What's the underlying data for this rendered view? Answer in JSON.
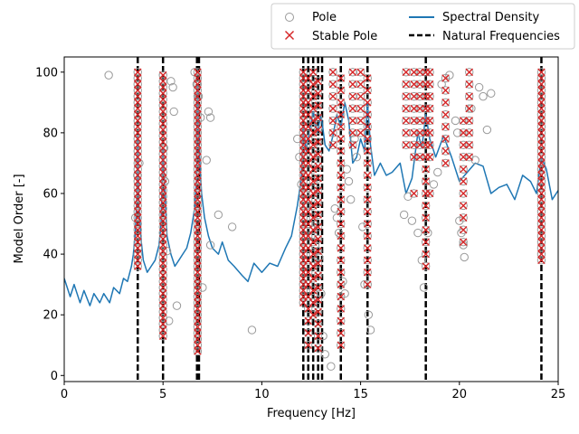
{
  "chart_data": {
    "type": "scatter",
    "title": "",
    "xlabel": "Frequency [Hz]",
    "ylabel": "Model Order [-]",
    "xlim": [
      0,
      25
    ],
    "ylim": [
      -2,
      105
    ],
    "xticks": [
      0,
      5,
      10,
      15,
      20,
      25
    ],
    "yticks": [
      0,
      20,
      40,
      60,
      80,
      100
    ],
    "xtick_labels": [
      "0",
      "5",
      "10",
      "15",
      "20",
      "25"
    ],
    "ytick_labels": [
      "0",
      "20",
      "40",
      "60",
      "80",
      "100"
    ],
    "grid": false,
    "legend": {
      "placement": "top-right, above plot",
      "entries": [
        "Pole",
        "Stable Pole",
        "Spectral Density",
        "Natural Frequencies"
      ]
    },
    "colors": {
      "pole": "#999999",
      "stable_pole": "#d62728",
      "spectral_density": "#1f77b4",
      "natural_frequencies": "#000000"
    },
    "natural_frequencies": [
      3.72,
      5.0,
      6.72,
      6.82,
      12.1,
      12.35,
      12.6,
      12.85,
      13.05,
      14.0,
      15.35,
      18.3,
      24.15
    ],
    "stable_columns": [
      {
        "x": 3.72,
        "orders": [
          36,
          38,
          40,
          42,
          44,
          46,
          48,
          50,
          52,
          54,
          56,
          58,
          60,
          62,
          64,
          66,
          68,
          70,
          72,
          74,
          76,
          78,
          80,
          82,
          84,
          86,
          88,
          90,
          92,
          94,
          96,
          98,
          100
        ]
      },
      {
        "x": 5.0,
        "orders": [
          13,
          15,
          17,
          19,
          21,
          23,
          25,
          27,
          29,
          31,
          33,
          35,
          37,
          39,
          41,
          43,
          45,
          47,
          49,
          51,
          53,
          55,
          57,
          59,
          61,
          63,
          65,
          67,
          69,
          71,
          73,
          75,
          77,
          79,
          81,
          83,
          85,
          87,
          89,
          91,
          93,
          95,
          97,
          99
        ]
      },
      {
        "x": 6.75,
        "orders": [
          8,
          10,
          12,
          14,
          16,
          18,
          20,
          22,
          24,
          26,
          28,
          30,
          32,
          34,
          36,
          38,
          40,
          42,
          44,
          46,
          48,
          50,
          52,
          54,
          56,
          58,
          60,
          62,
          64,
          66,
          68,
          70,
          72,
          74,
          76,
          78,
          80,
          82,
          84,
          86,
          88,
          90,
          92,
          94,
          96,
          98,
          100
        ]
      },
      {
        "x": 12.1,
        "orders": [
          24,
          26,
          28,
          30,
          32,
          34,
          36,
          38,
          40,
          42,
          44,
          46,
          48,
          50,
          52,
          54,
          56,
          58,
          60,
          62,
          64,
          66,
          68,
          70,
          72,
          74,
          76,
          78,
          80,
          82,
          84,
          86,
          88,
          90,
          92,
          94,
          96,
          98,
          100
        ]
      },
      {
        "x": 12.35,
        "orders": [
          10,
          14,
          18,
          22,
          26,
          30,
          34,
          38,
          42,
          46,
          50,
          54,
          58,
          62,
          66,
          70,
          74,
          78,
          82,
          86,
          90,
          94,
          98
        ]
      },
      {
        "x": 12.6,
        "orders": [
          20,
          24,
          28,
          32,
          36,
          40,
          44,
          48,
          52,
          56,
          60,
          64,
          68,
          72,
          76,
          80,
          84,
          88,
          92,
          96,
          100
        ]
      },
      {
        "x": 12.85,
        "orders": [
          9,
          13,
          17,
          21,
          25,
          29,
          33,
          37,
          41,
          45,
          49,
          53,
          57,
          61,
          65,
          69,
          73,
          77,
          81,
          85,
          89,
          93,
          97
        ]
      },
      {
        "x": 14.0,
        "orders": [
          10,
          14,
          18,
          22,
          26,
          30,
          34,
          38,
          42,
          46,
          50,
          54,
          58,
          62,
          66,
          70,
          74,
          78,
          82,
          86,
          90,
          94,
          98
        ]
      },
      {
        "x": 15.35,
        "orders": [
          30,
          34,
          38,
          42,
          46,
          50,
          54,
          58,
          62,
          66,
          70,
          74,
          78,
          82,
          86,
          90,
          94,
          98
        ]
      },
      {
        "x": 18.3,
        "orders": [
          36,
          40,
          44,
          48,
          52,
          56,
          60,
          64,
          68,
          72,
          76,
          80,
          84,
          88,
          92,
          96,
          100
        ]
      },
      {
        "x": 24.15,
        "orders": [
          38,
          40,
          42,
          44,
          46,
          48,
          50,
          52,
          54,
          56,
          58,
          60,
          62,
          64,
          66,
          68,
          70,
          72,
          74,
          76,
          78,
          80,
          82,
          84,
          86,
          88,
          90,
          92,
          94,
          96,
          98,
          100
        ]
      }
    ],
    "stable_extra": [
      {
        "x": 13.6,
        "orders": [
          76,
          80,
          84,
          88,
          92,
          96,
          100
        ]
      },
      {
        "x": 14.6,
        "orders": [
          76,
          80,
          84,
          88,
          92,
          96,
          100
        ]
      },
      {
        "x": 15.0,
        "orders": [
          80,
          84,
          88,
          92,
          96,
          100
        ]
      },
      {
        "x": 17.3,
        "orders": [
          76,
          80,
          84,
          88,
          92,
          96,
          100
        ]
      },
      {
        "x": 17.7,
        "orders": [
          60,
          72,
          76,
          80,
          84,
          88,
          92,
          96,
          100
        ]
      },
      {
        "x": 18.0,
        "orders": [
          72,
          76,
          80,
          84,
          88,
          92,
          96,
          100
        ]
      },
      {
        "x": 18.5,
        "orders": [
          60,
          72,
          76,
          80,
          84,
          88,
          92,
          96,
          100
        ]
      },
      {
        "x": 19.3,
        "orders": [
          70,
          74,
          78,
          82,
          86,
          90,
          94,
          98
        ]
      },
      {
        "x": 20.2,
        "orders": [
          44,
          48,
          52,
          56,
          60,
          64,
          68,
          72,
          76,
          80,
          84
        ]
      },
      {
        "x": 20.5,
        "orders": [
          72,
          76,
          80,
          84,
          88,
          92,
          96,
          100
        ]
      }
    ],
    "unstable_poles": [
      [
        2.25,
        99
      ],
      [
        3.6,
        52
      ],
      [
        3.7,
        66
      ],
      [
        3.8,
        70
      ],
      [
        5.05,
        75
      ],
      [
        5.1,
        64
      ],
      [
        5.2,
        41
      ],
      [
        5.3,
        18
      ],
      [
        5.4,
        97
      ],
      [
        5.5,
        95
      ],
      [
        5.55,
        87
      ],
      [
        5.7,
        23
      ],
      [
        6.6,
        100
      ],
      [
        6.7,
        96
      ],
      [
        6.8,
        92
      ],
      [
        6.9,
        85
      ],
      [
        7.0,
        29
      ],
      [
        7.2,
        71
      ],
      [
        7.3,
        87
      ],
      [
        7.4,
        85
      ],
      [
        7.8,
        53
      ],
      [
        8.5,
        49
      ],
      [
        7.4,
        43
      ],
      [
        9.5,
        15
      ],
      [
        11.8,
        78
      ],
      [
        11.9,
        72
      ],
      [
        12.0,
        63
      ],
      [
        12.2,
        60
      ],
      [
        12.3,
        56
      ],
      [
        12.4,
        50
      ],
      [
        12.5,
        46
      ],
      [
        12.7,
        43
      ],
      [
        12.9,
        39
      ],
      [
        13.0,
        27
      ],
      [
        13.1,
        13
      ],
      [
        13.2,
        7
      ],
      [
        13.5,
        3
      ],
      [
        13.7,
        55
      ],
      [
        13.8,
        52
      ],
      [
        13.9,
        47
      ],
      [
        14.1,
        31
      ],
      [
        14.2,
        27
      ],
      [
        14.3,
        68
      ],
      [
        14.4,
        64
      ],
      [
        14.5,
        58
      ],
      [
        14.7,
        78
      ],
      [
        14.8,
        72
      ],
      [
        15.1,
        49
      ],
      [
        15.2,
        30
      ],
      [
        15.4,
        20
      ],
      [
        15.5,
        15
      ],
      [
        17.2,
        53
      ],
      [
        17.4,
        59
      ],
      [
        17.6,
        51
      ],
      [
        17.9,
        47
      ],
      [
        18.1,
        38
      ],
      [
        18.2,
        29
      ],
      [
        18.4,
        47
      ],
      [
        18.7,
        63
      ],
      [
        18.9,
        67
      ],
      [
        19.1,
        96
      ],
      [
        19.5,
        99
      ],
      [
        19.8,
        84
      ],
      [
        19.9,
        80
      ],
      [
        20.0,
        51
      ],
      [
        20.1,
        47
      ],
      [
        20.2,
        43
      ],
      [
        20.25,
        39
      ],
      [
        20.6,
        88
      ],
      [
        20.8,
        71
      ],
      [
        21.0,
        95
      ],
      [
        21.2,
        92
      ],
      [
        21.4,
        81
      ],
      [
        21.6,
        93
      ]
    ],
    "spectral_density": {
      "x": [
        0.0,
        0.3,
        0.5,
        0.8,
        1.0,
        1.3,
        1.5,
        1.8,
        2.0,
        2.3,
        2.5,
        2.8,
        3.0,
        3.2,
        3.4,
        3.5,
        3.6,
        3.68,
        3.72,
        3.78,
        3.9,
        4.0,
        4.2,
        4.4,
        4.6,
        4.8,
        4.9,
        5.0,
        5.1,
        5.2,
        5.4,
        5.6,
        5.8,
        6.0,
        6.2,
        6.4,
        6.6,
        6.7,
        6.75,
        6.85,
        6.95,
        7.1,
        7.3,
        7.5,
        7.8,
        8.0,
        8.3,
        8.6,
        9.0,
        9.3,
        9.6,
        10.0,
        10.4,
        10.8,
        11.2,
        11.5,
        11.8,
        12.0,
        12.1,
        12.25,
        12.4,
        12.6,
        12.8,
        13.0,
        13.2,
        13.4,
        13.6,
        13.8,
        14.0,
        14.2,
        14.4,
        14.6,
        14.8,
        15.0,
        15.2,
        15.35,
        15.5,
        15.7,
        16.0,
        16.3,
        16.6,
        17.0,
        17.3,
        17.6,
        17.9,
        18.1,
        18.3,
        18.5,
        18.8,
        19.2,
        19.6,
        20.0,
        20.4,
        20.8,
        21.2,
        21.6,
        22.0,
        22.4,
        22.8,
        23.2,
        23.6,
        23.9,
        24.15,
        24.4,
        24.7,
        25.0
      ],
      "y": [
        32,
        26,
        30,
        24,
        28,
        23,
        27,
        24,
        27,
        24,
        29,
        27,
        32,
        31,
        36,
        40,
        47,
        60,
        79,
        56,
        44,
        38,
        34,
        36,
        38,
        43,
        50,
        75,
        60,
        46,
        40,
        36,
        38,
        40,
        42,
        47,
        55,
        65,
        96,
        72,
        60,
        52,
        46,
        42,
        40,
        44,
        38,
        36,
        33,
        31,
        37,
        34,
        37,
        36,
        42,
        46,
        56,
        65,
        82,
        74,
        80,
        87,
        80,
        86,
        76,
        74,
        79,
        86,
        82,
        90,
        84,
        70,
        72,
        78,
        74,
        90,
        76,
        66,
        70,
        66,
        67,
        70,
        60,
        65,
        80,
        75,
        86,
        78,
        72,
        79,
        72,
        64,
        67,
        70,
        69,
        60,
        62,
        63,
        58,
        66,
        64,
        60,
        72,
        68,
        58,
        61
      ]
    }
  }
}
